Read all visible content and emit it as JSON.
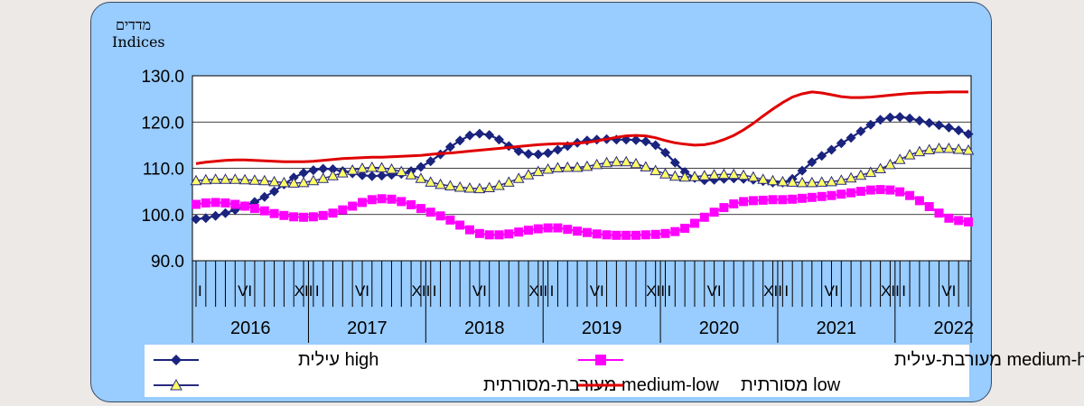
{
  "chart_data": {
    "type": "line",
    "y_title_he": "מדדים",
    "y_title_en": "Indices",
    "ylim": [
      90,
      130
    ],
    "yticks": [
      "90.0",
      "100.0",
      "110.0",
      "120.0",
      "130.0"
    ],
    "month_labels": [
      "I",
      "VI",
      "XII"
    ],
    "years": [
      "2016",
      "2017",
      "2018",
      "2019",
      "2020",
      "2021",
      "2022"
    ],
    "n_points": 80,
    "series": [
      {
        "name": "high עילית",
        "color": "#1a237e",
        "marker": "diamond",
        "values": [
          99.0,
          99.2,
          99.7,
          100.3,
          101.0,
          101.8,
          102.7,
          103.8,
          105.0,
          106.5,
          108.0,
          109.0,
          109.6,
          109.9,
          109.8,
          109.4,
          108.9,
          108.5,
          108.3,
          108.4,
          108.6,
          108.8,
          109.4,
          110.3,
          111.5,
          113.0,
          114.6,
          116.0,
          117.1,
          117.5,
          117.2,
          116.2,
          114.8,
          113.7,
          113.1,
          113.0,
          113.3,
          114.0,
          114.8,
          115.5,
          116.0,
          116.2,
          116.3,
          116.2,
          116.2,
          116.1,
          115.8,
          115.0,
          113.4,
          111.2,
          109.2,
          107.9,
          107.4,
          107.5,
          107.7,
          107.8,
          107.7,
          107.5,
          107.2,
          106.9,
          106.9,
          107.7,
          109.5,
          111.3,
          112.7,
          114.0,
          115.4,
          116.6,
          118.0,
          119.4,
          120.5,
          121.0,
          121.1,
          120.8,
          120.3,
          119.8,
          119.3,
          118.8,
          118.2,
          117.4
        ]
      },
      {
        "name": "medium-high מעורבת-עילית",
        "color": "#ff00ff",
        "marker": "square",
        "values": [
          102.2,
          102.5,
          102.6,
          102.5,
          102.2,
          101.8,
          101.3,
          100.8,
          100.2,
          99.8,
          99.5,
          99.4,
          99.5,
          99.8,
          100.3,
          101.0,
          101.8,
          102.6,
          103.2,
          103.4,
          103.3,
          102.8,
          102.1,
          101.3,
          100.5,
          99.7,
          98.8,
          97.7,
          96.7,
          95.9,
          95.6,
          95.6,
          95.8,
          96.2,
          96.6,
          96.9,
          97.1,
          97.1,
          96.8,
          96.4,
          96.1,
          95.8,
          95.6,
          95.5,
          95.5,
          95.5,
          95.6,
          95.7,
          95.9,
          96.3,
          97.0,
          98.1,
          99.4,
          100.5,
          101.5,
          102.3,
          102.8,
          103.0,
          103.1,
          103.2,
          103.2,
          103.3,
          103.5,
          103.7,
          103.9,
          104.1,
          104.4,
          104.7,
          105.0,
          105.3,
          105.4,
          105.3,
          104.9,
          104.1,
          103.0,
          101.7,
          100.3,
          99.2,
          98.7,
          98.4
        ]
      },
      {
        "name": "medium-low מעורבת-מסורתית",
        "color": "#2a2a80",
        "marker": "triangle",
        "values": [
          107.3,
          107.5,
          107.6,
          107.6,
          107.6,
          107.5,
          107.4,
          107.3,
          107.1,
          106.9,
          106.8,
          106.9,
          107.3,
          107.8,
          108.4,
          109.0,
          109.6,
          110.0,
          110.2,
          110.1,
          109.8,
          109.3,
          108.6,
          107.8,
          107.0,
          106.5,
          106.2,
          105.9,
          105.7,
          105.6,
          105.8,
          106.3,
          107.0,
          107.8,
          108.6,
          109.3,
          109.8,
          110.1,
          110.2,
          110.2,
          110.4,
          110.8,
          111.2,
          111.4,
          111.4,
          111.0,
          110.3,
          109.5,
          108.8,
          108.3,
          108.1,
          108.2,
          108.4,
          108.6,
          108.7,
          108.7,
          108.5,
          108.1,
          107.6,
          107.3,
          107.1,
          107.0,
          106.9,
          106.9,
          107.0,
          107.1,
          107.4,
          107.9,
          108.5,
          109.1,
          109.9,
          110.8,
          111.9,
          112.9,
          113.6,
          114.0,
          114.3,
          114.3,
          114.1,
          113.9
        ]
      },
      {
        "name": "low מסורתית",
        "color": "#e00000",
        "marker": "none",
        "values": [
          111.0,
          111.3,
          111.5,
          111.7,
          111.8,
          111.8,
          111.7,
          111.6,
          111.5,
          111.4,
          111.4,
          111.4,
          111.5,
          111.7,
          111.9,
          112.1,
          112.2,
          112.3,
          112.4,
          112.4,
          112.5,
          112.6,
          112.7,
          112.8,
          113.0,
          113.2,
          113.3,
          113.5,
          113.7,
          113.9,
          114.1,
          114.3,
          114.5,
          114.7,
          114.9,
          115.1,
          115.2,
          115.3,
          115.3,
          115.4,
          115.6,
          115.9,
          116.3,
          116.7,
          117.0,
          117.1,
          117.0,
          116.6,
          116.0,
          115.5,
          115.2,
          115.0,
          115.1,
          115.5,
          116.2,
          117.1,
          118.3,
          119.7,
          121.3,
          122.8,
          124.2,
          125.4,
          126.1,
          126.5,
          126.3,
          125.9,
          125.5,
          125.3,
          125.3,
          125.4,
          125.6,
          125.8,
          126.0,
          126.2,
          126.3,
          126.4,
          126.4,
          126.5,
          126.5,
          126.5
        ]
      }
    ]
  }
}
